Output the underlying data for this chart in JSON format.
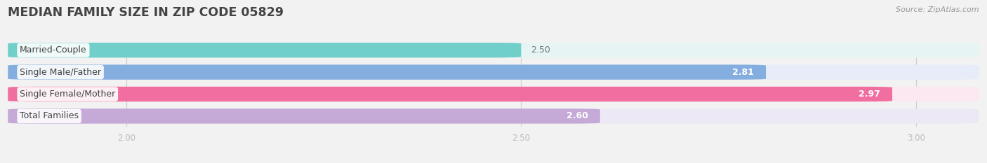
{
  "title": "MEDIAN FAMILY SIZE IN ZIP CODE 05829",
  "source": "Source: ZipAtlas.com",
  "categories": [
    "Married-Couple",
    "Single Male/Father",
    "Single Female/Mother",
    "Total Families"
  ],
  "values": [
    2.5,
    2.81,
    2.97,
    2.6
  ],
  "bar_colors": [
    "#70cfc9",
    "#85aee0",
    "#f06ea0",
    "#c5aad8"
  ],
  "bar_bg_colors": [
    "#e6f5f4",
    "#e6edf8",
    "#fce8f0",
    "#ede8f5"
  ],
  "xlim": [
    1.85,
    3.08
  ],
  "xticks": [
    2.0,
    2.5,
    3.0
  ],
  "xtick_labels": [
    "2.00",
    "2.50",
    "3.00"
  ],
  "label_fontsize": 9.0,
  "value_fontsize": 9.0,
  "title_fontsize": 12.5,
  "background_color": "#f2f2f2",
  "bar_height": 0.68,
  "label_color": "#444444",
  "value_color_white": "#ffffff",
  "value_color_bar": "#888888",
  "source_color": "#999999",
  "source_fontsize": 8.0
}
